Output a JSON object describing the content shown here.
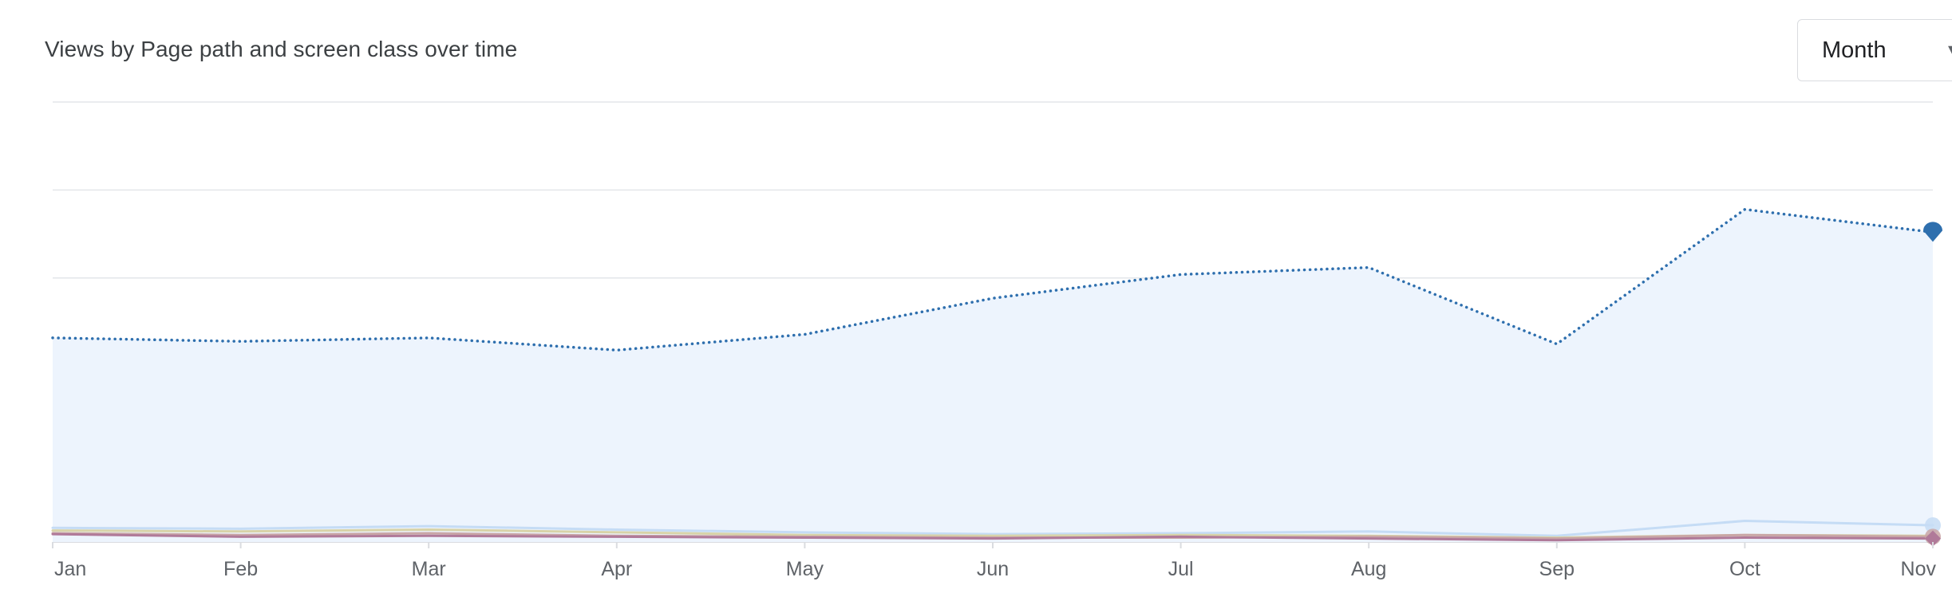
{
  "header": {
    "title": "Views by Page path and screen class over time",
    "granularity_label": "Month"
  },
  "chart_data": {
    "type": "line",
    "title": "Views by Page path and screen class over time",
    "xlabel": "",
    "ylabel": "",
    "categories": [
      "Jan",
      "Feb",
      "Mar",
      "Apr",
      "May",
      "Jun",
      "Jul",
      "Aug",
      "Sep",
      "Oct",
      "Nov"
    ],
    "ylim": [
      0,
      5
    ],
    "grid": true,
    "legend": "none",
    "series": [
      {
        "values": [
          2.32,
          2.28,
          2.32,
          2.18,
          2.36,
          2.77,
          3.04,
          3.12,
          2.25,
          3.78,
          3.52
        ],
        "color": "#1a73e8",
        "line_color": "#2e6fae",
        "style": "dotted",
        "area_fill": "#edf4fd",
        "end_marker": "pin"
      },
      {
        "values": [
          0.16,
          0.15,
          0.18,
          0.14,
          0.11,
          0.09,
          0.1,
          0.12,
          0.07,
          0.24,
          0.19
        ],
        "color": "#c5dcf5",
        "style": "solid",
        "end_marker": "circle"
      },
      {
        "values": [
          0.13,
          0.12,
          0.14,
          0.11,
          0.08,
          0.07,
          0.08,
          0.07,
          0.05,
          0.08,
          0.07
        ],
        "color": "#d8d3a8",
        "style": "solid",
        "end_marker": "none"
      },
      {
        "values": [
          0.1,
          0.08,
          0.1,
          0.07,
          0.06,
          0.05,
          0.05,
          0.06,
          0.04,
          0.08,
          0.06
        ],
        "color": "#c9a6a6",
        "style": "solid",
        "end_marker": "circle"
      },
      {
        "values": [
          0.09,
          0.06,
          0.07,
          0.06,
          0.05,
          0.04,
          0.06,
          0.04,
          0.02,
          0.05,
          0.04
        ],
        "color": "#b07a99",
        "style": "solid",
        "end_marker": "diamond"
      }
    ]
  }
}
